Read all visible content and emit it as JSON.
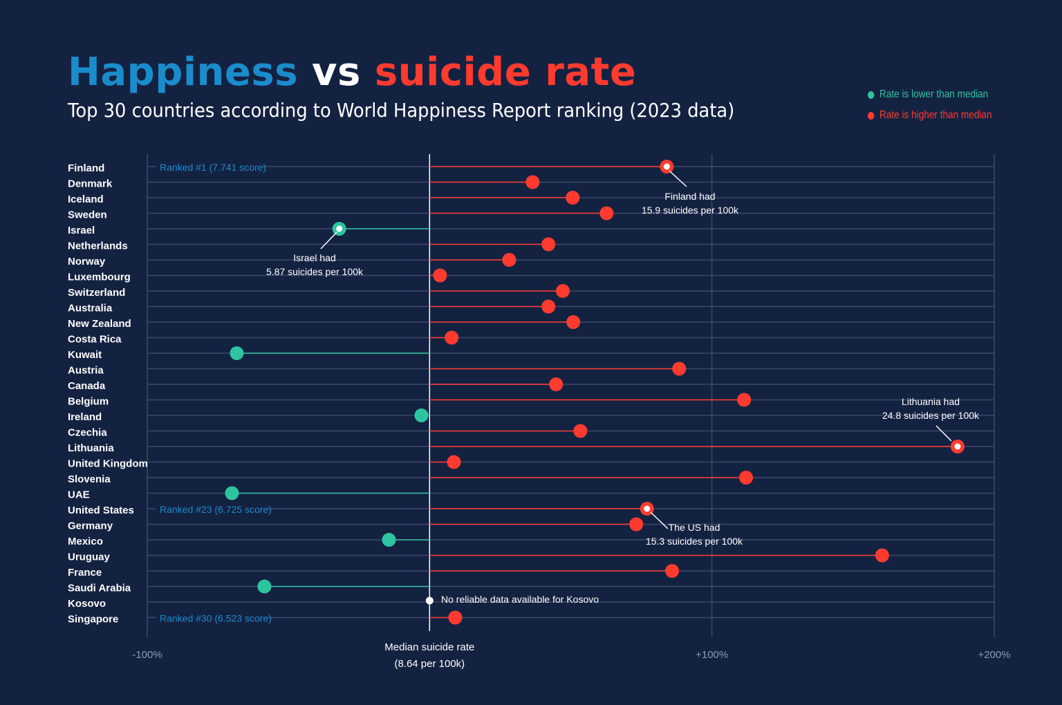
{
  "title": {
    "part1": "Happiness",
    "part2": "vs",
    "part3": "suicide rate"
  },
  "subtitle": "Top 30 countries according to World Happiness Report ranking (2023 data)",
  "legend": {
    "lower": "Rate is lower than median",
    "higher": "Rate is higher than median"
  },
  "colors": {
    "background": "#142241",
    "lower": "#2ec4a0",
    "higher": "#ff3b30",
    "rank_label": "#1a8ccc",
    "grid": "#3a4a68"
  },
  "chart_data": {
    "type": "lollipop",
    "xlabel": "Median suicide rate",
    "xlabel_sub": "(8.64 per 100k)",
    "xlim": [
      -100,
      200
    ],
    "x_ticks": [
      {
        "value": -100,
        "label": "-100%"
      },
      {
        "value": 100,
        "label": "+100%"
      },
      {
        "value": 200,
        "label": "+200%"
      }
    ],
    "grid": true,
    "legend_position": "top-right",
    "categories": [
      "Finland",
      "Denmark",
      "Iceland",
      "Sweden",
      "Israel",
      "Netherlands",
      "Norway",
      "Luxembourg",
      "Switzerland",
      "Australia",
      "New Zealand",
      "Costa Rica",
      "Kuwait",
      "Austria",
      "Canada",
      "Belgium",
      "Ireland",
      "Czechia",
      "Lithuania",
      "United Kingdom",
      "Slovenia",
      "UAE",
      "United States",
      "Germany",
      "Mexico",
      "Uruguay",
      "France",
      "Saudi Arabia",
      "Kosovo",
      "Singapore"
    ],
    "values": [
      84,
      36.5,
      50.7,
      62.7,
      -32,
      42.1,
      28.2,
      3.7,
      47.2,
      42.1,
      50.9,
      7.8,
      -68.3,
      88.4,
      44.8,
      111.4,
      -2.9,
      53.4,
      187,
      8.6,
      112.1,
      -70,
      77,
      73.2,
      -14.4,
      160.3,
      85.9,
      -58.5,
      null,
      9.1
    ],
    "highlighted": [
      "Finland",
      "Israel",
      "Lithuania",
      "United States"
    ],
    "rank_labels": [
      {
        "country": "Finland",
        "text": "Ranked #1  (7.741 score)"
      },
      {
        "country": "United States",
        "text": "Ranked #23  (6.725 score)"
      },
      {
        "country": "Singapore",
        "text": "Ranked #30  (6.523 score)"
      }
    ],
    "annotations": [
      {
        "country": "Finland",
        "lines": [
          "Finland had",
          "15.9 suicides per 100k"
        ]
      },
      {
        "country": "Israel",
        "lines": [
          "Israel had",
          "5.87 suicides per 100k"
        ]
      },
      {
        "country": "Lithuania",
        "lines": [
          "Lithuania had",
          "24.8 suicides per 100k"
        ]
      },
      {
        "country": "United States",
        "lines": [
          "The US had",
          "15.3 suicides per 100k"
        ]
      },
      {
        "country": "Kosovo",
        "lines": [
          "No reliable data available for Kosovo"
        ]
      }
    ]
  }
}
